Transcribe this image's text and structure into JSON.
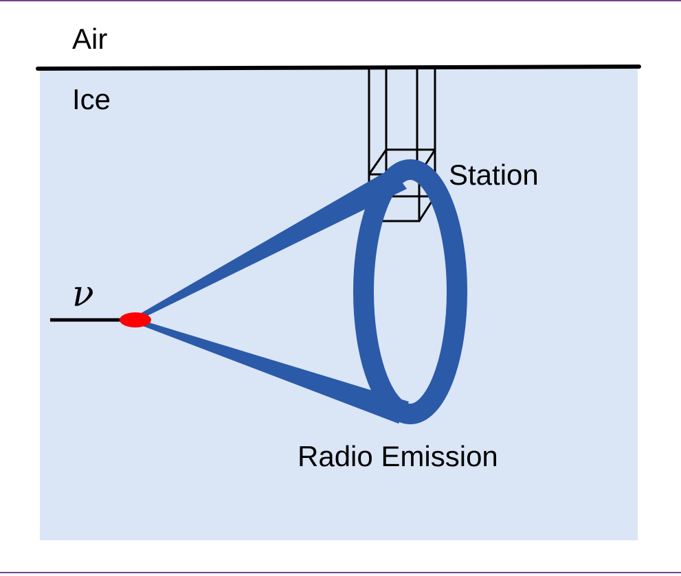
{
  "labels": {
    "air": "Air",
    "ice": "Ice",
    "station": "Station",
    "neutrino": "ν",
    "emission": "Radio Emission"
  }
}
